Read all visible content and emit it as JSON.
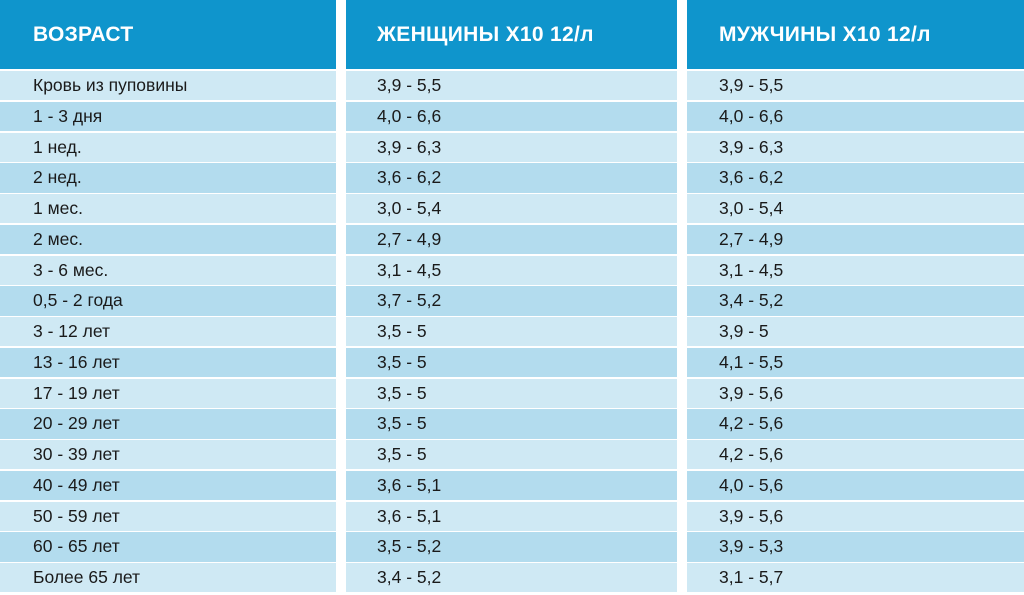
{
  "colors": {
    "header_bg": "#0f95cc",
    "row_light": "#cfe9f4",
    "row_dark": "#b3dcee",
    "text": "#1a1a1a"
  },
  "columns": [
    {
      "header": "ВОЗРАСТ",
      "cells": [
        "Кровь из пуповины",
        "1 - 3 дня",
        "1 нед.",
        "2 нед.",
        "1 мес.",
        "2 мес.",
        "3 - 6 мес.",
        "0,5 - 2 года",
        "3 - 12 лет",
        "13 - 16 лет",
        "17 - 19 лет",
        "20 - 29 лет",
        "30 - 39 лет",
        "40 - 49 лет",
        "50 - 59 лет",
        "60 - 65 лет",
        "Более 65 лет"
      ]
    },
    {
      "header": "ЖЕНЩИНЫ Х10 12/л",
      "cells": [
        "3,9 - 5,5",
        "4,0 - 6,6",
        "3,9 - 6,3",
        "3,6 - 6,2",
        "3,0 - 5,4",
        "2,7 - 4,9",
        "3,1 - 4,5",
        "3,7 - 5,2",
        "3,5 - 5",
        "3,5 - 5",
        "3,5 - 5",
        "3,5 - 5",
        "3,5 - 5",
        "3,6 - 5,1",
        "3,6 - 5,1",
        "3,5 - 5,2",
        "3,4 - 5,2"
      ]
    },
    {
      "header": "МУЖЧИНЫ Х10 12/л",
      "cells": [
        "3,9 - 5,5",
        "4,0 - 6,6",
        "3,9 - 6,3",
        "3,6 - 6,2",
        "3,0 - 5,4",
        "2,7 - 4,9",
        "3,1 - 4,5",
        "3,4 - 5,2",
        "3,9 - 5",
        "4,1 - 5,5",
        "3,9 - 5,6",
        "4,2 - 5,6",
        "4,2 - 5,6",
        "4,0 - 5,6",
        "3,9 - 5,6",
        "3,9 - 5,3",
        "3,1 - 5,7"
      ]
    }
  ]
}
